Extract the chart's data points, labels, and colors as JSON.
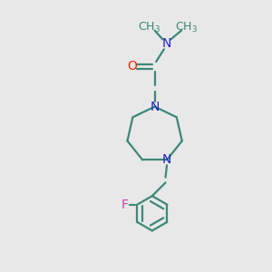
{
  "background_color": "#e8e8e8",
  "bond_color": "#3d8878",
  "N_color": "#2222cc",
  "O_color": "#ff2200",
  "F_color": "#cc44aa",
  "line_width": 1.6,
  "font_size": 10,
  "figsize": [
    3.0,
    3.0
  ],
  "dpi": 100,
  "xlim": [
    0,
    10
  ],
  "ylim": [
    0,
    10
  ]
}
